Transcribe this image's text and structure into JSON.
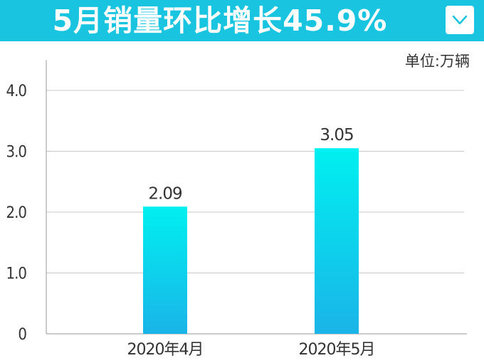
{
  "header": {
    "title": "5月销量环比增长45.9%",
    "dropdown_icon": "chevron-down-icon"
  },
  "colors": {
    "header_bg": "#19c4e0",
    "bar_top": "#00f0f0",
    "bar_bottom": "#1ab4e8",
    "grid": "#c8c8c8",
    "axis": "#999999"
  },
  "chart_data": {
    "type": "bar",
    "unit_label": "单位:万辆",
    "categories": [
      "2020年4月",
      "2020年5月"
    ],
    "values": [
      2.09,
      3.05
    ],
    "value_labels": [
      "2.09",
      "3.05"
    ],
    "y_ticks": [
      0,
      1.0,
      2.0,
      3.0,
      4.0
    ],
    "y_tick_labels": [
      "0",
      "1.0",
      "2.0",
      "3.0",
      "4.0"
    ],
    "ylim": [
      0,
      4.5
    ],
    "grid": true,
    "title": "",
    "xlabel": "",
    "ylabel": ""
  }
}
